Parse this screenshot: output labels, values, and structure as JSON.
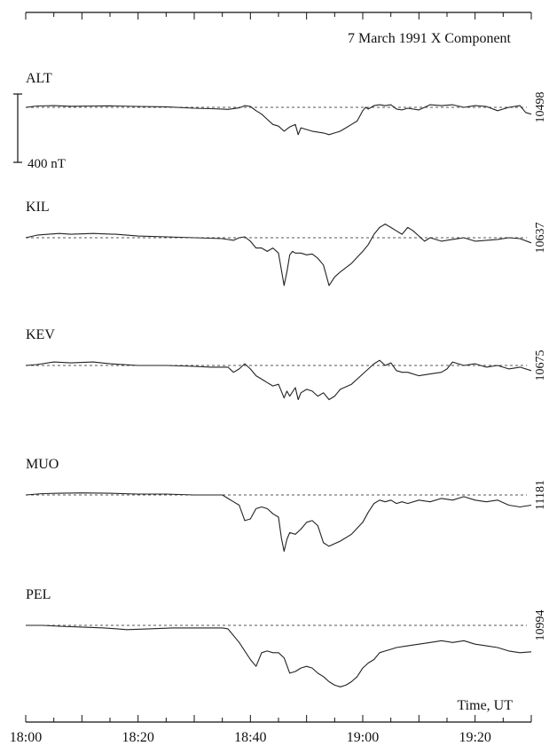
{
  "chart_data": {
    "type": "line",
    "title": "7 March 1991  X Component",
    "xlabel": "Time, UT",
    "x_ticks": [
      "18:00",
      "18:20",
      "18:40",
      "19:00",
      "19:20"
    ],
    "x_range_minutes": [
      0,
      90
    ],
    "scale_bar_label": "400 nT",
    "scale_bar_nT": 400,
    "grid": false,
    "series": [
      {
        "name": "ALT",
        "baseline_value": "10498",
        "dev": [
          [
            0,
            0
          ],
          [
            2,
            -8
          ],
          [
            5,
            -10
          ],
          [
            8,
            -6
          ],
          [
            12,
            -8
          ],
          [
            15,
            -9
          ],
          [
            20,
            -5
          ],
          [
            25,
            -3
          ],
          [
            30,
            5
          ],
          [
            33,
            8
          ],
          [
            36,
            12
          ],
          [
            38,
            3
          ],
          [
            39,
            -10
          ],
          [
            40,
            -5
          ],
          [
            41,
            20
          ],
          [
            42,
            40
          ],
          [
            43,
            70
          ],
          [
            44,
            100
          ],
          [
            45,
            110
          ],
          [
            46,
            140
          ],
          [
            47,
            115
          ],
          [
            48,
            100
          ],
          [
            48.5,
            160
          ],
          [
            49,
            120
          ],
          [
            50,
            130
          ],
          [
            51,
            140
          ],
          [
            52,
            145
          ],
          [
            53,
            150
          ],
          [
            54,
            160
          ],
          [
            55,
            150
          ],
          [
            56,
            140
          ],
          [
            57,
            120
          ],
          [
            58,
            100
          ],
          [
            59,
            80
          ],
          [
            60,
            20
          ],
          [
            60.5,
            0
          ],
          [
            61,
            10
          ],
          [
            62,
            -10
          ],
          [
            63,
            -15
          ],
          [
            64,
            -10
          ],
          [
            65,
            -15
          ],
          [
            66,
            10
          ],
          [
            67,
            15
          ],
          [
            68,
            5
          ],
          [
            70,
            15
          ],
          [
            72,
            -15
          ],
          [
            74,
            -10
          ],
          [
            76,
            -15
          ],
          [
            78,
            0
          ],
          [
            80,
            -10
          ],
          [
            82,
            -5
          ],
          [
            84,
            20
          ],
          [
            86,
            0
          ],
          [
            88,
            -10
          ],
          [
            89,
            30
          ],
          [
            90,
            40
          ]
        ]
      },
      {
        "name": "KIL",
        "baseline_value": "10637",
        "dev": [
          [
            0,
            0
          ],
          [
            2,
            -15
          ],
          [
            4,
            -20
          ],
          [
            6,
            -25
          ],
          [
            8,
            -20
          ],
          [
            12,
            -25
          ],
          [
            16,
            -20
          ],
          [
            20,
            -10
          ],
          [
            25,
            -5
          ],
          [
            30,
            0
          ],
          [
            35,
            5
          ],
          [
            37,
            15
          ],
          [
            38,
            0
          ],
          [
            39,
            -5
          ],
          [
            40,
            20
          ],
          [
            41,
            60
          ],
          [
            42,
            60
          ],
          [
            43,
            80
          ],
          [
            44,
            60
          ],
          [
            45,
            90
          ],
          [
            46,
            280
          ],
          [
            46.5,
            200
          ],
          [
            47,
            100
          ],
          [
            47.5,
            80
          ],
          [
            48,
            90
          ],
          [
            49,
            90
          ],
          [
            50,
            100
          ],
          [
            51,
            95
          ],
          [
            52,
            120
          ],
          [
            53,
            160
          ],
          [
            54,
            280
          ],
          [
            55,
            230
          ],
          [
            56,
            200
          ],
          [
            58,
            150
          ],
          [
            60,
            80
          ],
          [
            61,
            40
          ],
          [
            62,
            -20
          ],
          [
            63,
            -60
          ],
          [
            64,
            -80
          ],
          [
            65,
            -60
          ],
          [
            66,
            -40
          ],
          [
            67,
            -20
          ],
          [
            68,
            -60
          ],
          [
            69,
            -40
          ],
          [
            70,
            -10
          ],
          [
            71,
            20
          ],
          [
            72,
            0
          ],
          [
            74,
            20
          ],
          [
            76,
            10
          ],
          [
            78,
            0
          ],
          [
            80,
            20
          ],
          [
            82,
            15
          ],
          [
            84,
            10
          ],
          [
            86,
            0
          ],
          [
            88,
            5
          ],
          [
            90,
            30
          ]
        ]
      },
      {
        "name": "KEV",
        "baseline_value": "10675",
        "dev": [
          [
            0,
            0
          ],
          [
            2,
            -5
          ],
          [
            5,
            -20
          ],
          [
            8,
            -15
          ],
          [
            12,
            -20
          ],
          [
            15,
            -10
          ],
          [
            20,
            0
          ],
          [
            25,
            0
          ],
          [
            30,
            5
          ],
          [
            33,
            10
          ],
          [
            36,
            10
          ],
          [
            37,
            40
          ],
          [
            38,
            20
          ],
          [
            39,
            -10
          ],
          [
            40,
            20
          ],
          [
            41,
            60
          ],
          [
            42,
            80
          ],
          [
            43,
            100
          ],
          [
            44,
            120
          ],
          [
            45,
            110
          ],
          [
            46,
            190
          ],
          [
            46.5,
            150
          ],
          [
            47,
            180
          ],
          [
            48,
            130
          ],
          [
            48.5,
            200
          ],
          [
            49,
            160
          ],
          [
            50,
            140
          ],
          [
            51,
            150
          ],
          [
            52,
            180
          ],
          [
            53,
            160
          ],
          [
            54,
            200
          ],
          [
            55,
            180
          ],
          [
            56,
            140
          ],
          [
            58,
            110
          ],
          [
            60,
            50
          ],
          [
            61,
            20
          ],
          [
            62,
            -10
          ],
          [
            63,
            -30
          ],
          [
            64,
            0
          ],
          [
            65,
            -15
          ],
          [
            66,
            30
          ],
          [
            67,
            40
          ],
          [
            68,
            40
          ],
          [
            70,
            60
          ],
          [
            72,
            50
          ],
          [
            74,
            40
          ],
          [
            75,
            20
          ],
          [
            76,
            -20
          ],
          [
            78,
            0
          ],
          [
            80,
            -10
          ],
          [
            82,
            10
          ],
          [
            84,
            0
          ],
          [
            86,
            20
          ],
          [
            88,
            10
          ],
          [
            90,
            30
          ]
        ]
      },
      {
        "name": "MUO",
        "baseline_value": "11181",
        "dev": [
          [
            0,
            0
          ],
          [
            3,
            -8
          ],
          [
            6,
            -10
          ],
          [
            10,
            -12
          ],
          [
            15,
            -10
          ],
          [
            20,
            -5
          ],
          [
            25,
            -5
          ],
          [
            30,
            0
          ],
          [
            35,
            0
          ],
          [
            36,
            20
          ],
          [
            37,
            40
          ],
          [
            38,
            60
          ],
          [
            39,
            150
          ],
          [
            40,
            140
          ],
          [
            41,
            80
          ],
          [
            42,
            70
          ],
          [
            43,
            80
          ],
          [
            44,
            110
          ],
          [
            45,
            130
          ],
          [
            45.5,
            250
          ],
          [
            46,
            330
          ],
          [
            46.5,
            260
          ],
          [
            47,
            220
          ],
          [
            48,
            230
          ],
          [
            49,
            200
          ],
          [
            50,
            160
          ],
          [
            51,
            150
          ],
          [
            52,
            180
          ],
          [
            53,
            280
          ],
          [
            54,
            300
          ],
          [
            56,
            270
          ],
          [
            58,
            230
          ],
          [
            60,
            160
          ],
          [
            61,
            100
          ],
          [
            62,
            50
          ],
          [
            63,
            30
          ],
          [
            64,
            40
          ],
          [
            65,
            30
          ],
          [
            66,
            50
          ],
          [
            67,
            40
          ],
          [
            68,
            50
          ],
          [
            70,
            30
          ],
          [
            72,
            40
          ],
          [
            74,
            20
          ],
          [
            76,
            30
          ],
          [
            78,
            10
          ],
          [
            80,
            30
          ],
          [
            82,
            40
          ],
          [
            84,
            30
          ],
          [
            86,
            60
          ],
          [
            88,
            70
          ],
          [
            90,
            60
          ]
        ]
      },
      {
        "name": "PEL",
        "baseline_value": "10994",
        "dev": [
          [
            0,
            0
          ],
          [
            3,
            0
          ],
          [
            6,
            5
          ],
          [
            10,
            10
          ],
          [
            14,
            15
          ],
          [
            18,
            25
          ],
          [
            22,
            20
          ],
          [
            26,
            15
          ],
          [
            30,
            15
          ],
          [
            35,
            15
          ],
          [
            36,
            20
          ],
          [
            38,
            100
          ],
          [
            40,
            200
          ],
          [
            41,
            240
          ],
          [
            42,
            160
          ],
          [
            43,
            150
          ],
          [
            44,
            160
          ],
          [
            45,
            160
          ],
          [
            46,
            190
          ],
          [
            47,
            280
          ],
          [
            48,
            270
          ],
          [
            49,
            250
          ],
          [
            50,
            240
          ],
          [
            51,
            250
          ],
          [
            52,
            280
          ],
          [
            53,
            300
          ],
          [
            54,
            330
          ],
          [
            55,
            350
          ],
          [
            56,
            360
          ],
          [
            57,
            350
          ],
          [
            58,
            330
          ],
          [
            59,
            300
          ],
          [
            60,
            250
          ],
          [
            61,
            220
          ],
          [
            62,
            200
          ],
          [
            63,
            160
          ],
          [
            64,
            150
          ],
          [
            65,
            140
          ],
          [
            66,
            130
          ],
          [
            68,
            120
          ],
          [
            70,
            110
          ],
          [
            72,
            100
          ],
          [
            74,
            90
          ],
          [
            76,
            100
          ],
          [
            78,
            90
          ],
          [
            80,
            110
          ],
          [
            82,
            120
          ],
          [
            84,
            130
          ],
          [
            86,
            150
          ],
          [
            88,
            160
          ],
          [
            90,
            155
          ]
        ]
      }
    ]
  }
}
